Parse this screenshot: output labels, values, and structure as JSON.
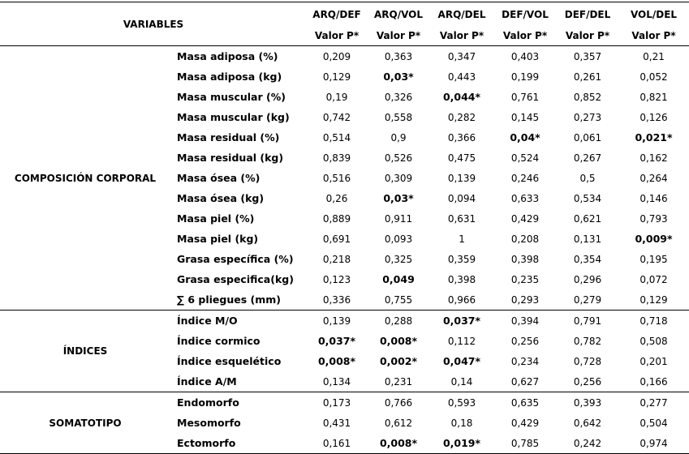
{
  "table": {
    "variables_header": "VARIABLES",
    "columns": [
      "ARQ/DEF",
      "ARQ/VOL",
      "ARQ/DEL",
      "DEF/VOL",
      "DEF/DEL",
      "VOL/DEL"
    ],
    "subheaders": [
      "Valor P*",
      "Valor P*",
      "Valor P*",
      "Valor P*",
      "Valor P*",
      "Valor P*"
    ],
    "groups": [
      {
        "name": "COMPOSICIÓN CORPORAL",
        "rows": [
          {
            "label": "Masa adiposa (%)",
            "values": [
              "0,209",
              "0,363",
              "0,347",
              "0,403",
              "0,357",
              "0,21"
            ],
            "bold": []
          },
          {
            "label": "Masa adiposa (kg)",
            "values": [
              "0,129",
              "0,03*",
              "0,443",
              "0,199",
              "0,261",
              "0,052"
            ],
            "bold": [
              1
            ]
          },
          {
            "label": "Masa muscular (%)",
            "values": [
              "0,19",
              "0,326",
              "0,044*",
              "0,761",
              "0,852",
              "0,821"
            ],
            "bold": [
              2
            ]
          },
          {
            "label": "Masa muscular (kg)",
            "values": [
              "0,742",
              "0,558",
              "0,282",
              "0,145",
              "0,273",
              "0,126"
            ],
            "bold": []
          },
          {
            "label": "Masa residual (%)",
            "values": [
              "0,514",
              "0,9",
              "0,366",
              "0,04*",
              "0,061",
              "0,021*"
            ],
            "bold": [
              3,
              5
            ]
          },
          {
            "label": "Masa residual (kg)",
            "values": [
              "0,839",
              "0,526",
              "0,475",
              "0,524",
              "0,267",
              "0,162"
            ],
            "bold": []
          },
          {
            "label": "Masa ósea (%)",
            "values": [
              "0,516",
              "0,309",
              "0,139",
              "0,246",
              "0,5",
              "0,264"
            ],
            "bold": []
          },
          {
            "label": "Masa ósea (kg)",
            "values": [
              "0,26",
              "0,03*",
              "0,094",
              "0,633",
              "0,534",
              "0,146"
            ],
            "bold": [
              1
            ]
          },
          {
            "label": "Masa piel (%)",
            "values": [
              "0,889",
              "0,911",
              "0,631",
              "0,429",
              "0,621",
              "0,793"
            ],
            "bold": []
          },
          {
            "label": "Masa piel (kg)",
            "values": [
              "0,691",
              "0,093",
              "1",
              "0,208",
              "0,131",
              "0,009*"
            ],
            "bold": [
              5
            ]
          },
          {
            "label": "Grasa específica (%)",
            "values": [
              "0,218",
              "0,325",
              "0,359",
              "0,398",
              "0,354",
              "0,195"
            ],
            "bold": []
          },
          {
            "label": "Grasa especifica(kg)",
            "values": [
              "0,123",
              "0,049",
              "0,398",
              "0,235",
              "0,296",
              "0,072"
            ],
            "bold": [
              1
            ]
          },
          {
            "label": "∑ 6 pliegues (mm)",
            "values": [
              "0,336",
              "0,755",
              "0,966",
              "0,293",
              "0,279",
              "0,129"
            ],
            "bold": []
          }
        ]
      },
      {
        "name": "ÍNDICES",
        "rows": [
          {
            "label": "Índice M/O",
            "values": [
              "0,139",
              "0,288",
              "0,037*",
              "0,394",
              "0,791",
              "0,718"
            ],
            "bold": [
              2
            ]
          },
          {
            "label": "Índice cormico",
            "values": [
              "0,037*",
              "0,008*",
              "0,112",
              "0,256",
              "0,782",
              "0,508"
            ],
            "bold": [
              0,
              1
            ]
          },
          {
            "label": "Índice esquelético",
            "values": [
              "0,008*",
              "0,002*",
              "0,047*",
              "0,234",
              "0,728",
              "0,201"
            ],
            "bold": [
              0,
              1,
              2
            ]
          },
          {
            "label": "Índice A/M",
            "values": [
              "0,134",
              "0,231",
              "0,14",
              "0,627",
              "0,256",
              "0,166"
            ],
            "bold": []
          }
        ]
      },
      {
        "name": "SOMATOTIPO",
        "rows": [
          {
            "label": "Endomorfo",
            "values": [
              "0,173",
              "0,766",
              "0,593",
              "0,635",
              "0,393",
              "0,277"
            ],
            "bold": []
          },
          {
            "label": "Mesomorfo",
            "values": [
              "0,431",
              "0,612",
              "0,18",
              "0,429",
              "0,642",
              "0,504"
            ],
            "bold": []
          },
          {
            "label": "Ectomorfo",
            "values": [
              "0,161",
              "0,008*",
              "0,019*",
              "0,785",
              "0,242",
              "0,974"
            ],
            "bold": [
              1,
              2
            ]
          }
        ]
      }
    ]
  }
}
